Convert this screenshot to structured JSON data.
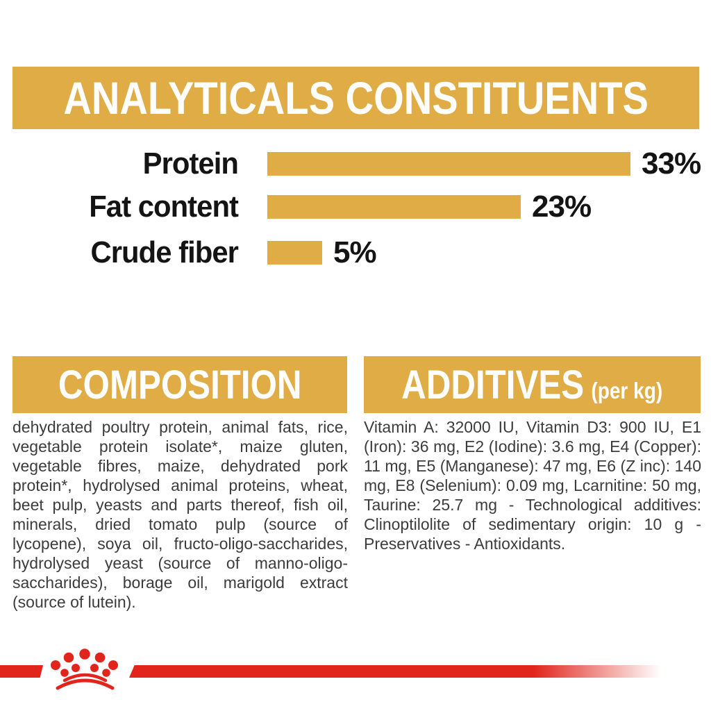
{
  "colors": {
    "gold": "#DFAC45",
    "red": "#E1251C",
    "text_dark": "#3C3C3C",
    "label_black": "#141414",
    "banner_text": "#FFFFFF",
    "background": "#FFFFFF"
  },
  "analyticals": {
    "title": "ANALYTICALS CONSTITUENTS"
  },
  "chart_data": {
    "type": "bar",
    "orientation": "horizontal",
    "title": "ANALYTICALS CONSTITUENTS",
    "categories": [
      "Protein",
      "Fat content",
      "Crude fiber"
    ],
    "values": [
      33,
      23,
      5
    ],
    "value_labels": [
      "33%",
      "23%",
      "5%"
    ],
    "unit": "%",
    "xlim": [
      0,
      33
    ],
    "bar_color": "#DFAC45",
    "grid": false,
    "legend": false
  },
  "composition": {
    "title": "COMPOSITION",
    "body": "dehydrated poultry protein, animal fats, rice, vegetable protein isolate*, maize gluten, vegetable fibres, maize, dehydrated pork protein*, hydrolysed animal proteins, wheat, beet pulp, yeasts and parts thereof, fish oil, minerals, dried tomato pulp (source of lycopene), soya oil, fructo-oligo-saccharides, hydrolysed yeast (source of manno-oligo-saccharides), borage oil, marigold extract (source of lutein)."
  },
  "additives": {
    "title": "ADDITIVES",
    "subtitle": "(per kg)",
    "body": "Vitamin A: 32000 IU, Vitamin D3: 900 IU, E1 (Iron): 36 mg, E2 (Iodine): 3.6 mg, E4 (Copper): 11 mg, E5 (Manganese): 47 mg, E6 (Z inc): 140 mg, E8 (Selenium): 0.09 mg, Lcarnitine: 50 mg, Taurine: 25.7 mg - Technological additives: Clinoptilolite of sedimentary origin: 10 g - Preservatives - Antioxidants."
  },
  "footer": {
    "brand": "Royal Canin crown emblem"
  }
}
